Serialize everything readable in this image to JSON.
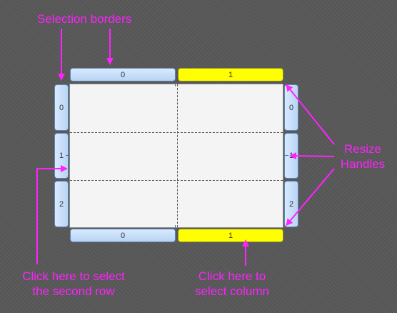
{
  "columns": [
    {
      "label": "0",
      "selected": false
    },
    {
      "label": "1",
      "selected": true
    }
  ],
  "rows": [
    {
      "label": "0"
    },
    {
      "label": "1"
    },
    {
      "label": "2"
    }
  ],
  "annotations": {
    "selection_borders": "Selection borders",
    "resize_line1": "Resize",
    "resize_line2": "Handles",
    "select_row_line1": "Click here to select",
    "select_row_line2": "the second row",
    "select_col_line1": "Click here to",
    "select_col_line2": "select column"
  },
  "colors": {
    "annotation": "#ff22ff",
    "selected_header": "#ffff00",
    "header": "#c7ddf7"
  }
}
